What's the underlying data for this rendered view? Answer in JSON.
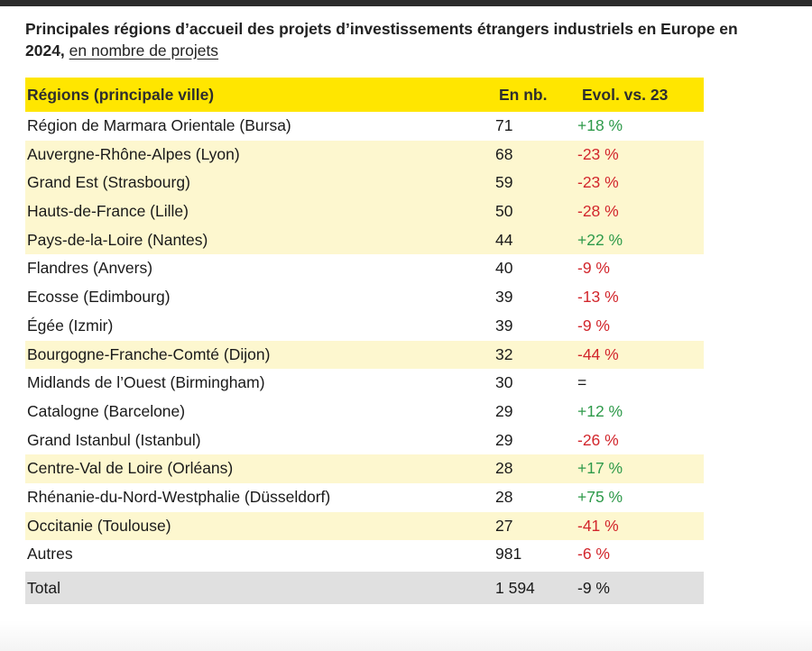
{
  "title": {
    "main": "Principales régions d’accueil des projets d’investissements étrangers industriels en Europe en 2024,",
    "sub": "en nombre de projets"
  },
  "table": {
    "headers": {
      "region": "Régions (principale ville)",
      "count": "En nb.",
      "evolution": "Evol. vs. 23"
    },
    "rows": [
      {
        "region": "Région de Marmara Orientale (Bursa)",
        "count": "71",
        "evolution": "+18 %",
        "trend": "pos",
        "highlight": false
      },
      {
        "region": "Auvergne-Rhône-Alpes (Lyon)",
        "count": "68",
        "evolution": "-23 %",
        "trend": "neg",
        "highlight": true
      },
      {
        "region": "Grand Est (Strasbourg)",
        "count": "59",
        "evolution": "-23 %",
        "trend": "neg",
        "highlight": true
      },
      {
        "region": "Hauts-de-France (Lille)",
        "count": "50",
        "evolution": "-28 %",
        "trend": "neg",
        "highlight": true
      },
      {
        "region": "Pays-de-la-Loire (Nantes)",
        "count": "44",
        "evolution": "+22 %",
        "trend": "pos",
        "highlight": true
      },
      {
        "region": "Flandres (Anvers)",
        "count": "40",
        "evolution": "-9 %",
        "trend": "neg",
        "highlight": false
      },
      {
        "region": "Ecosse (Edimbourg)",
        "count": "39",
        "evolution": "-13 %",
        "trend": "neg",
        "highlight": false
      },
      {
        "region": "Égée (Izmir)",
        "count": "39",
        "evolution": "-9 %",
        "trend": "neg",
        "highlight": false
      },
      {
        "region": "Bourgogne-Franche-Comté (Dijon)",
        "count": "32",
        "evolution": "-44 %",
        "trend": "neg",
        "highlight": true
      },
      {
        "region": "Midlands de l’Ouest (Birmingham)",
        "count": "30",
        "evolution": "=",
        "trend": "neu",
        "highlight": false
      },
      {
        "region": "Catalogne (Barcelone)",
        "count": "29",
        "evolution": "+12 %",
        "trend": "pos",
        "highlight": false
      },
      {
        "region": "Grand Istanbul (Istanbul)",
        "count": "29",
        "evolution": "-26 %",
        "trend": "neg",
        "highlight": false
      },
      {
        "region": "Centre-Val de Loire (Orléans)",
        "count": "28",
        "evolution": "+17 %",
        "trend": "pos",
        "highlight": true
      },
      {
        "region": "Rhénanie-du-Nord-Westphalie (Düsseldorf)",
        "count": "28",
        "evolution": "+75 %",
        "trend": "pos",
        "highlight": false
      },
      {
        "region": "Occitanie (Toulouse)",
        "count": "27",
        "evolution": "-41 %",
        "trend": "neg",
        "highlight": true
      },
      {
        "region": "Autres",
        "count": "981",
        "evolution": "-6 %",
        "trend": "neg",
        "highlight": false
      }
    ],
    "total": {
      "region": "Total",
      "count": "1 594",
      "evolution": "-9 %"
    }
  },
  "colors": {
    "header_bg": "#ffe600",
    "highlight_bg": "#fdf7cf",
    "total_bg": "#e0e0e0",
    "positive": "#2e9a4a",
    "negative": "#d2262c"
  }
}
